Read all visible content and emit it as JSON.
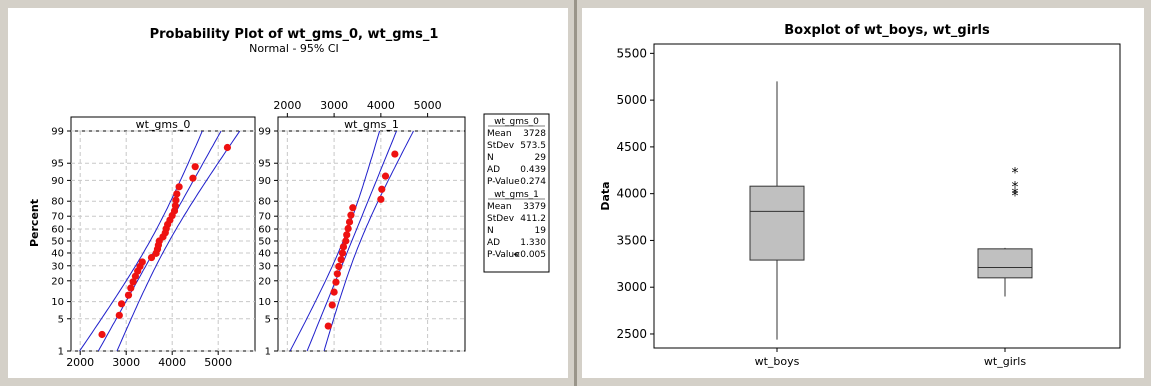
{
  "chart_data": [
    {
      "type": "probability-plot",
      "title": "Probability Plot of wt_gms_0, wt_gms_1",
      "subtitle": "Normal - 95% CI",
      "ylabel": "Percent",
      "y_ticks": [
        1,
        5,
        10,
        20,
        30,
        40,
        50,
        60,
        70,
        80,
        90,
        95,
        99
      ],
      "x_ticks": [
        2000,
        3000,
        4000,
        5000
      ],
      "xlim": [
        1800,
        5800
      ],
      "ylim_percent": [
        1,
        99
      ],
      "grid": true,
      "colors": {
        "points": "#ee1111",
        "fit_lines": "#2020cc",
        "grid": "#c8c8c8"
      },
      "panels": [
        {
          "name": "wt_gms_0",
          "x_tick_labels_position": "bottom",
          "x": [
            2475,
            2850,
            2900,
            3050,
            3100,
            3150,
            3200,
            3250,
            3300,
            3350,
            3550,
            3650,
            3680,
            3700,
            3720,
            3800,
            3850,
            3870,
            3900,
            3950,
            4000,
            4050,
            4070,
            4080,
            4100,
            4150,
            4450,
            4500,
            5200
          ],
          "y": [
            2.4,
            5.8,
            9.2,
            12.6,
            16.0,
            19.4,
            22.8,
            26.2,
            29.5,
            32.9,
            36.3,
            39.7,
            43.1,
            46.5,
            50.0,
            53.5,
            56.9,
            60.3,
            63.7,
            67.1,
            70.5,
            73.8,
            77.2,
            80.6,
            84.0,
            87.4,
            90.8,
            94.2,
            97.6
          ],
          "mean": 3728,
          "stdev": 573.5
        },
        {
          "name": "wt_gms_1",
          "x_tick_labels_position": "top",
          "x": [
            2875,
            2960,
            3000,
            3040,
            3070,
            3100,
            3150,
            3180,
            3200,
            3250,
            3270,
            3300,
            3330,
            3360,
            3400,
            4000,
            4020,
            4100,
            4300
          ],
          "y": [
            3.6,
            8.8,
            14.0,
            19.2,
            24.4,
            29.5,
            34.7,
            39.9,
            45.1,
            50.0,
            55.2,
            60.4,
            65.6,
            70.8,
            75.9,
            81.1,
            86.3,
            91.5,
            96.7
          ],
          "mean": 3379,
          "stdev": 411.2
        }
      ],
      "stats_table": [
        {
          "header": "wt_gms_0",
          "rows": [
            [
              "Mean",
              "3728"
            ],
            [
              "StDev",
              "573.5"
            ],
            [
              "N",
              "29"
            ],
            [
              "AD",
              "0.439"
            ],
            [
              "P-Value",
              "0.274"
            ]
          ]
        },
        {
          "header": "wt_gms_1",
          "rows": [
            [
              "Mean",
              "3379"
            ],
            [
              "StDev",
              "411.2"
            ],
            [
              "N",
              "19"
            ],
            [
              "AD",
              "1.330"
            ],
            [
              "P-Value",
              "<0.005"
            ]
          ]
        }
      ]
    },
    {
      "type": "boxplot",
      "title": "Boxplot of wt_boys, wt_girls",
      "ylabel": "Data",
      "categories": [
        "wt_boys",
        "wt_girls"
      ],
      "y_ticks": [
        2500,
        3000,
        3500,
        4000,
        4500,
        5000,
        5500
      ],
      "ylim": [
        2350,
        5600
      ],
      "grid": false,
      "colors": {
        "box_fill": "#c0c0c0",
        "box_stroke": "#333333"
      },
      "boxes": [
        {
          "name": "wt_boys",
          "min": 2440,
          "q1": 3290,
          "median": 3810,
          "q3": 4080,
          "max": 5200,
          "outliers": []
        },
        {
          "name": "wt_girls",
          "min": 2900,
          "q1": 3100,
          "median": 3210,
          "q3": 3410,
          "max": 3420,
          "outliers": [
            4000,
            4030,
            4100,
            4250
          ]
        }
      ]
    }
  ]
}
